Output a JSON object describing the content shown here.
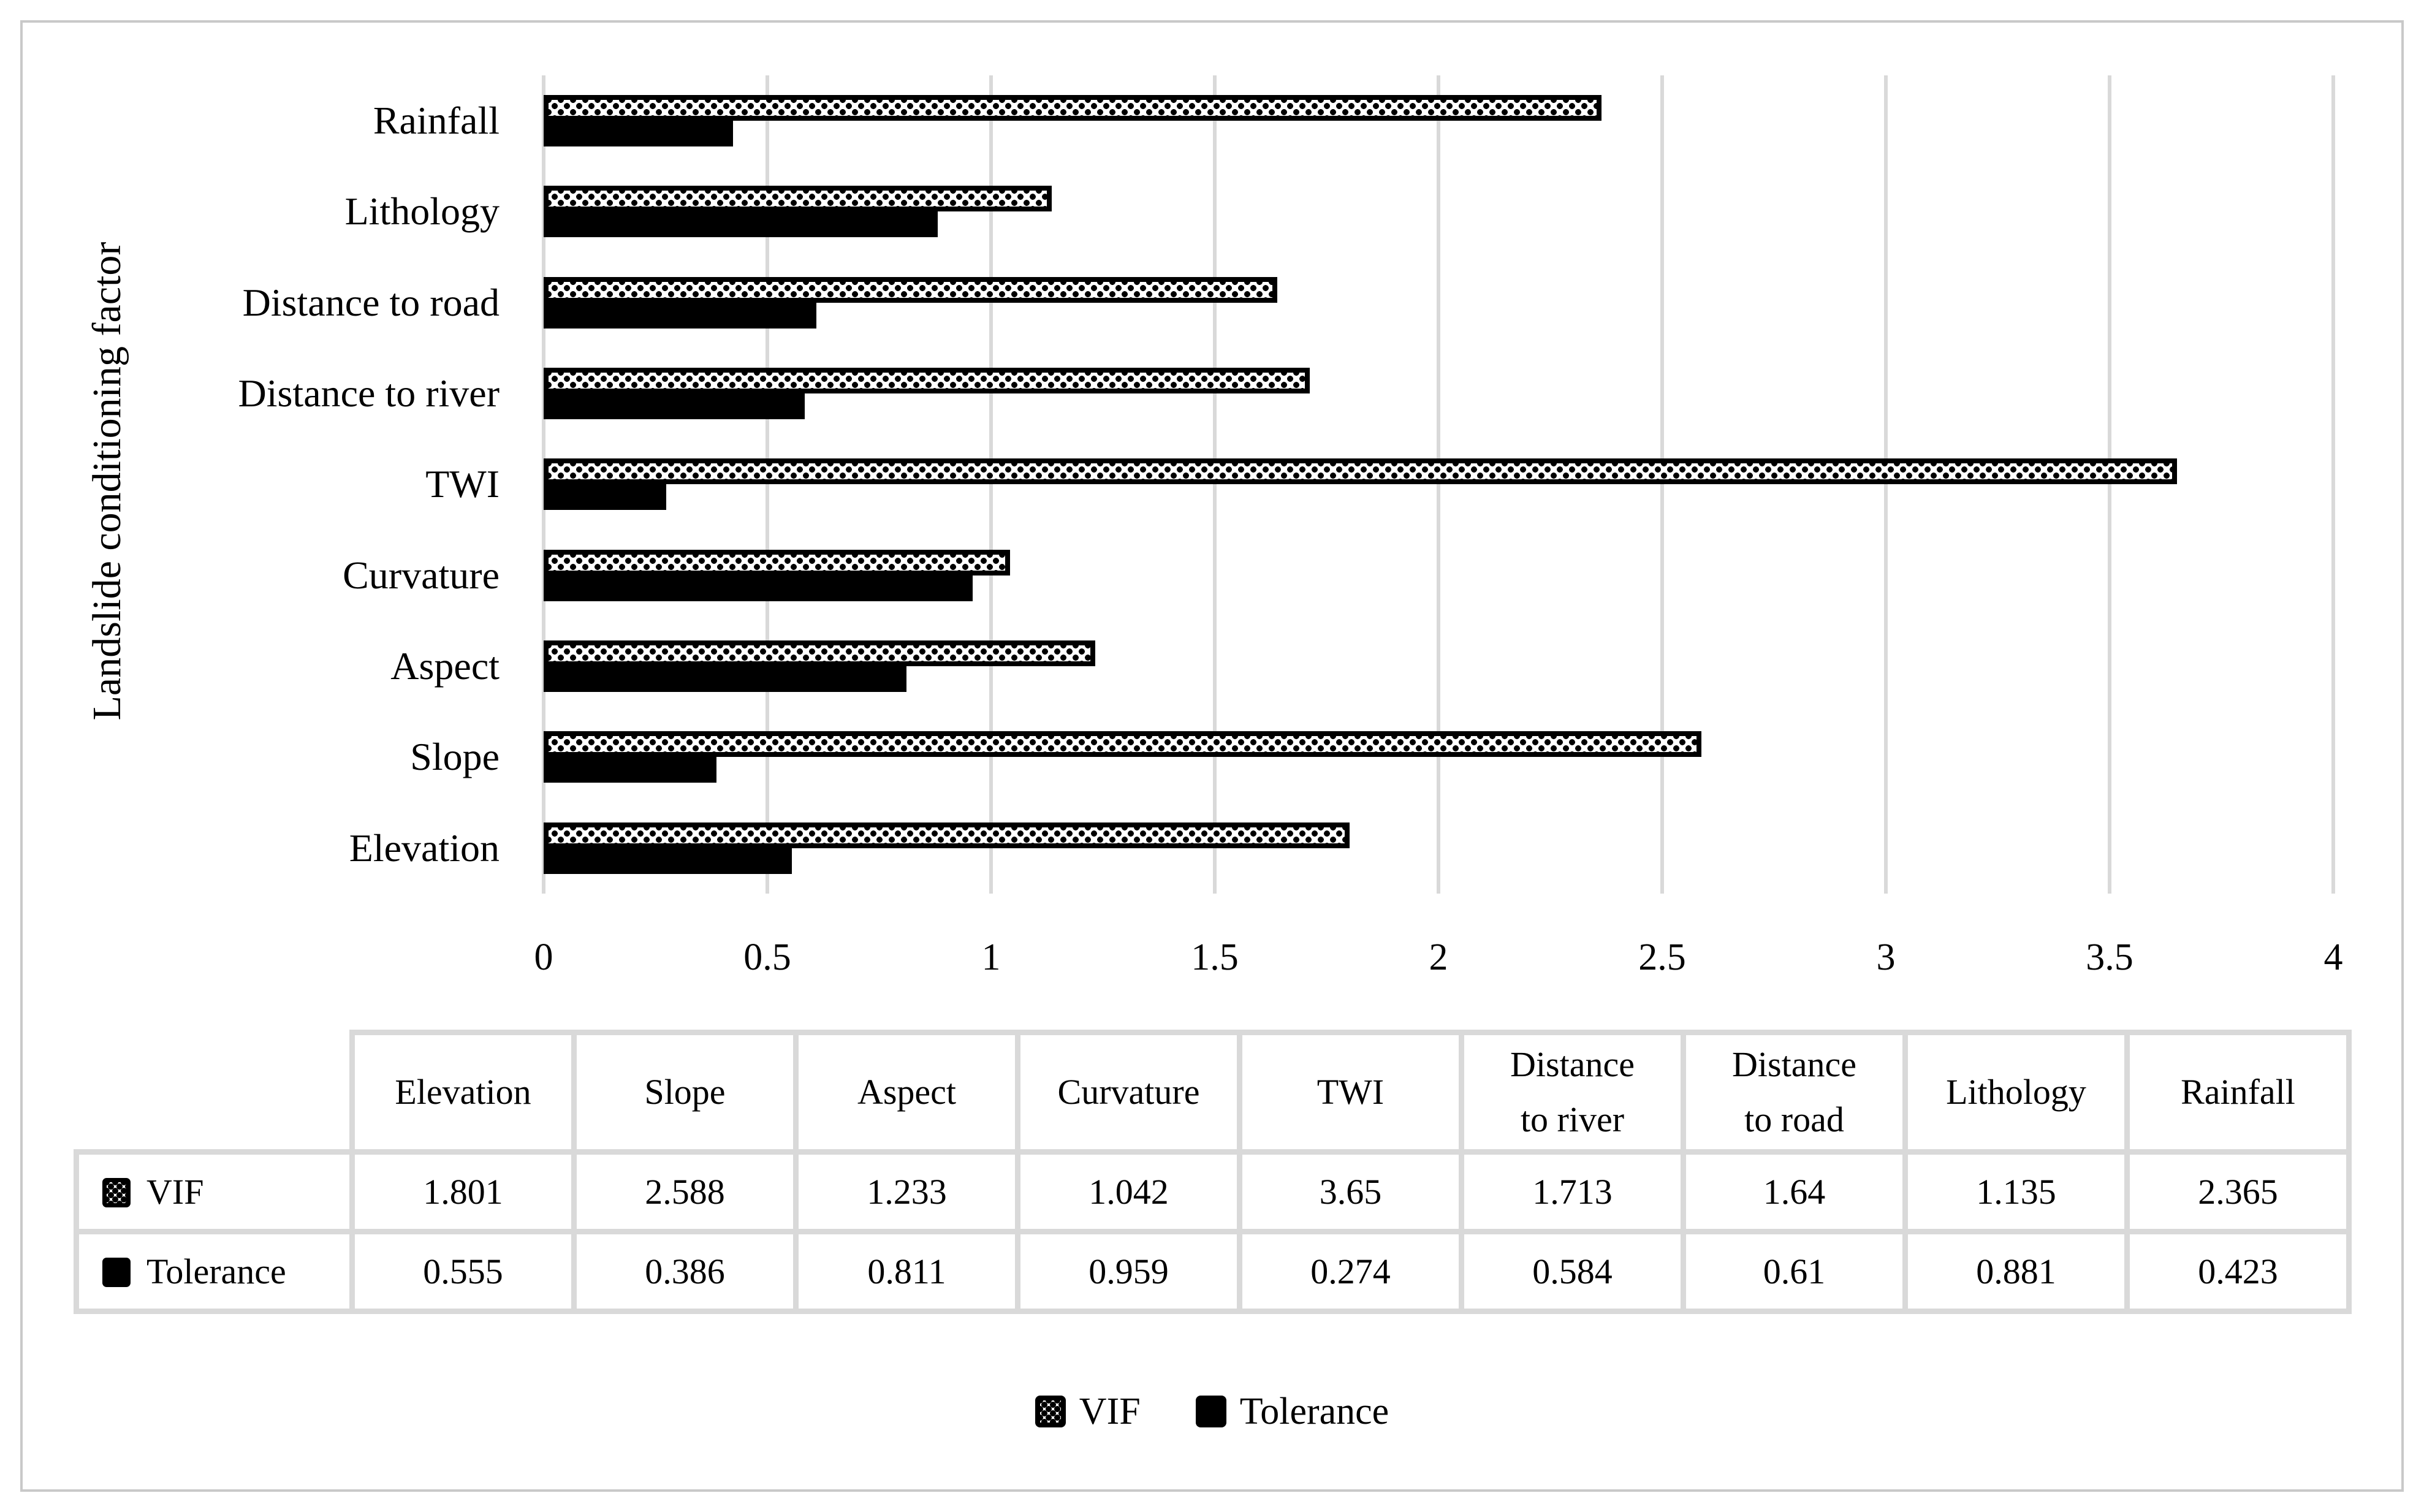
{
  "colors": {
    "bar": "#000000",
    "grid": "#d9d9d9",
    "table_border": "#d9d9d9",
    "frame_border": "#c9c9c9",
    "text": "#000000"
  },
  "chart_data": {
    "type": "bar",
    "orientation": "horizontal",
    "title": "",
    "xlabel": "",
    "ylabel": "Landslide conditioning factor",
    "categories": [
      "Rainfall",
      "Lithology",
      "Distance to road",
      "Distance to river",
      "TWI",
      "Curvature",
      "Aspect",
      "Slope",
      "Elevation"
    ],
    "series": [
      {
        "name": "VIF",
        "style": "dotted-pattern",
        "values": [
          2.365,
          1.135,
          1.64,
          1.713,
          3.65,
          1.042,
          1.233,
          2.588,
          1.801
        ]
      },
      {
        "name": "Tolerance",
        "style": "solid-black",
        "values": [
          0.423,
          0.881,
          0.61,
          0.584,
          0.274,
          0.959,
          0.811,
          0.386,
          0.555
        ]
      }
    ],
    "xlim": [
      0,
      4
    ],
    "xticks": [
      0,
      0.5,
      1,
      1.5,
      2,
      2.5,
      3,
      3.5,
      4
    ],
    "xtick_labels": [
      "0",
      "0.5",
      "1",
      "1.5",
      "2",
      "2.5",
      "3",
      "3.5",
      "4"
    ],
    "grid": "vertical gridlines every 0.5, light gray, no horizontal gridlines",
    "legend_position": "bottom"
  },
  "table": {
    "columns": [
      "Elevation",
      "Slope",
      "Aspect",
      "Curvature",
      "TWI",
      "Distance\nto river",
      "Distance\nto road",
      "Lithology",
      "Rainfall"
    ],
    "rows": [
      {
        "label": "VIF",
        "swatch": "dotted",
        "values": [
          "1.801",
          "2.588",
          "1.233",
          "1.042",
          "3.65",
          "1.713",
          "1.64",
          "1.135",
          "2.365"
        ]
      },
      {
        "label": "Tolerance",
        "swatch": "solid",
        "values": [
          "0.555",
          "0.386",
          "0.811",
          "0.959",
          "0.274",
          "0.584",
          "0.61",
          "0.881",
          "0.423"
        ]
      }
    ]
  },
  "legend": {
    "items": [
      {
        "label": "VIF",
        "swatch": "dotted"
      },
      {
        "label": "Tolerance",
        "swatch": "solid"
      }
    ]
  }
}
